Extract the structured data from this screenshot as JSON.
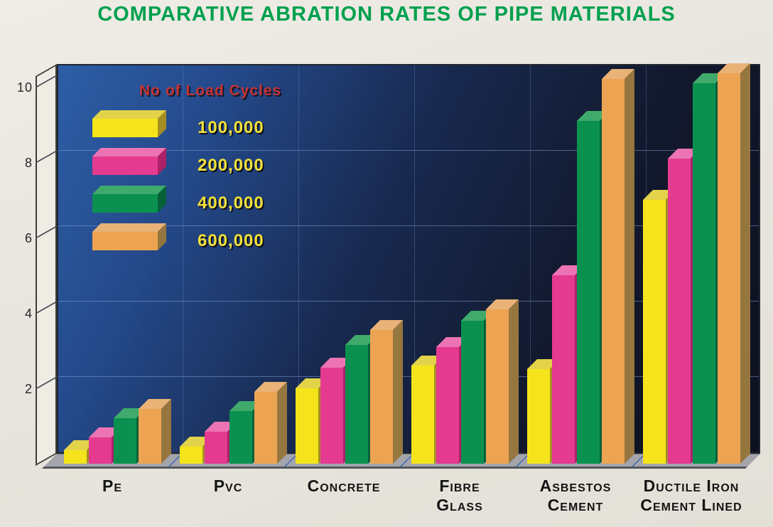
{
  "title": "COMPARATIVE ABRATION RATES OF PIPE MATERIALS",
  "colors": {
    "title_green": "#00a04e",
    "page_background": "#e9e6df",
    "wall_gradient_top_left": "#2d5ea6",
    "wall_gradient_bottom_right": "#0e1120",
    "floor_gray": "#a3a5ab",
    "floor_separator_blue": "#3e66b5",
    "legend_title_red": "#c23434",
    "legend_label_yellow": "#f2e13a",
    "axis_wall_cream": "#efece4"
  },
  "chart_data": {
    "type": "bar",
    "style": "3d-oblique-columns",
    "title": "COMPARATIVE ABRATION RATES OF PIPE MATERIALS",
    "legend_title": "No of Load Cycles",
    "legend_position": "top-left inside plot",
    "categories": [
      "PE",
      "PVC",
      "CONCRETE",
      "FIBRE GLASS",
      "ASBESTOS CEMENT",
      "DUCTILE IRON CEMENT LINED"
    ],
    "category_lines": [
      [
        "Pe"
      ],
      [
        "Pvc"
      ],
      [
        "Concrete"
      ],
      [
        "Fibre",
        "Glass"
      ],
      [
        "Asbestos",
        "Cement"
      ],
      [
        "Ductile Iron",
        "Cement Lined"
      ]
    ],
    "xlabel": "",
    "ylabel": "",
    "y_ticks": [
      2,
      4,
      6,
      8,
      10
    ],
    "grid_ticks": [
      2,
      4,
      6,
      8
    ],
    "ylim": [
      0,
      10.5
    ],
    "grid": "horizontal lines at 2,4,6,8 plus faint vertical category separators",
    "series": [
      {
        "name": "100,000",
        "front": "#f5e41b",
        "top": "#e3d34a",
        "side": "#a78e22",
        "values": [
          0.35,
          0.45,
          2.0,
          2.6,
          2.5,
          7.0
        ]
      },
      {
        "name": "200,000",
        "front": "#e43a90",
        "top": "#ec74b4",
        "side": "#ac2168",
        "values": [
          0.7,
          0.85,
          2.55,
          3.1,
          5.0,
          8.1
        ]
      },
      {
        "name": "400,000",
        "front": "#0a9150",
        "top": "#3faa6c",
        "side": "#056038",
        "values": [
          1.2,
          1.4,
          3.15,
          3.8,
          9.1,
          10.1
        ]
      },
      {
        "name": "600,000",
        "front": "#eca452",
        "top": "#e9b277",
        "side": "#96763f",
        "values": [
          1.45,
          1.9,
          3.55,
          4.1,
          10.2,
          10.35
        ]
      }
    ]
  }
}
